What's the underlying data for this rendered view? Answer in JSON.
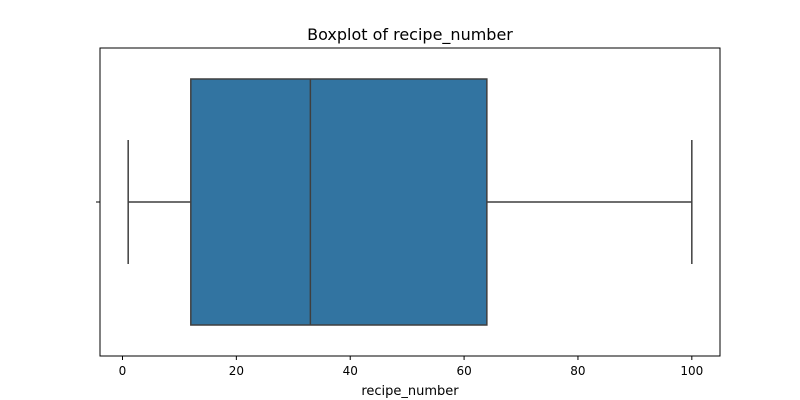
{
  "chart_data": {
    "type": "boxplot",
    "title": "Boxplot of recipe_number",
    "xlabel": "recipe_number",
    "ylabel": "",
    "xlim": [
      -3.95,
      104.95
    ],
    "xticks": [
      0,
      20,
      40,
      60,
      80,
      100
    ],
    "xtick_labels": [
      "0",
      "20",
      "40",
      "60",
      "80",
      "100"
    ],
    "grid": false,
    "box": {
      "min": 1,
      "q1": 12,
      "median": 33,
      "q3": 64,
      "max": 100
    },
    "colors": {
      "box_fill": "#3274a1",
      "line": "#3f3f3f",
      "axis": "#000000"
    }
  }
}
